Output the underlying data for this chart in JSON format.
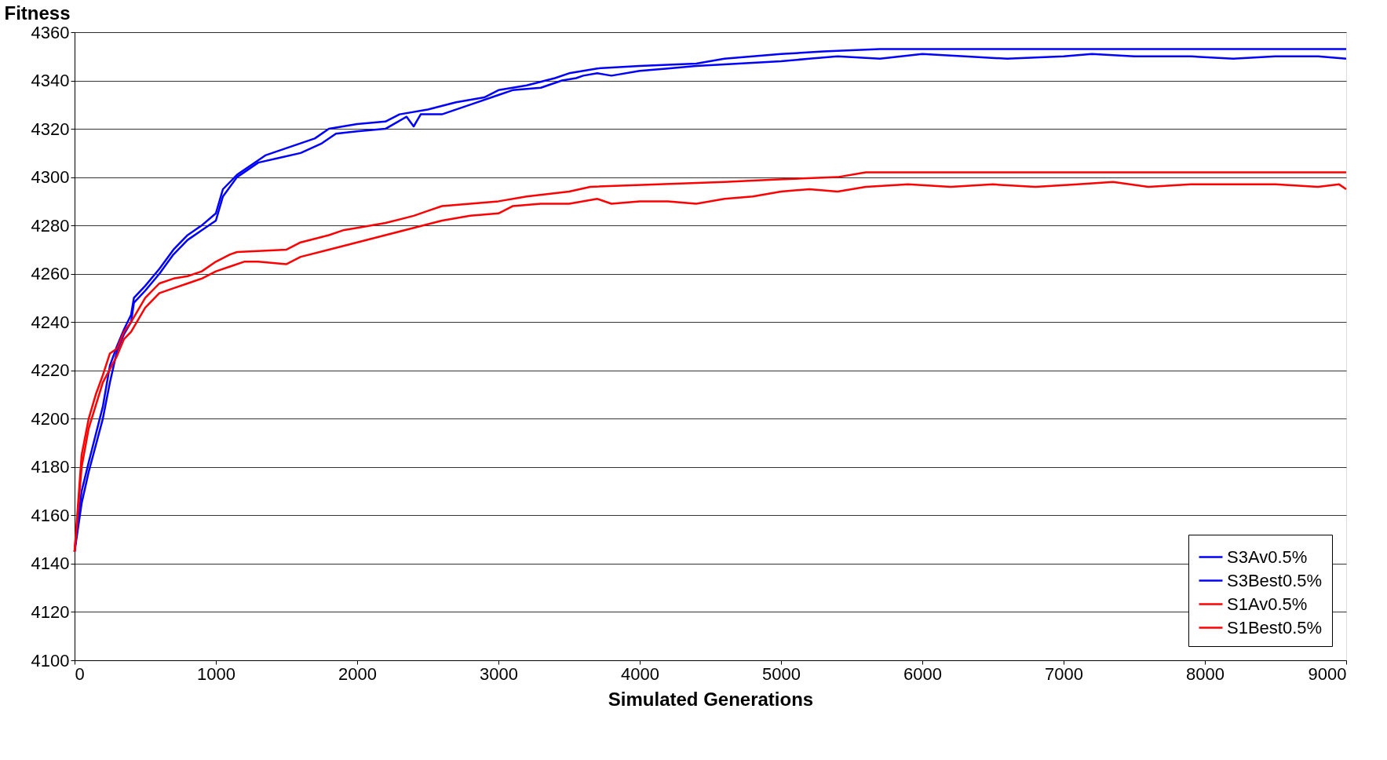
{
  "chart_data": {
    "type": "line",
    "xlabel": "Simulated Generations",
    "ylabel": "Fitness",
    "xlim": [
      0,
      9000
    ],
    "xticks": [
      0,
      1000,
      2000,
      3000,
      4000,
      5000,
      6000,
      7000,
      8000,
      9000
    ],
    "ylim": [
      4100,
      4360
    ],
    "yticks": [
      4100,
      4120,
      4140,
      4160,
      4180,
      4200,
      4220,
      4240,
      4260,
      4280,
      4300,
      4320,
      4340,
      4360
    ],
    "grid": "y",
    "legend": "bottom right",
    "marker": "none",
    "line_style": "solid",
    "series": [
      {
        "name": "S3Av0.5%",
        "color": "#0000ff",
        "x": [
          0,
          50,
          100,
          200,
          250,
          300,
          350,
          400,
          420,
          500,
          600,
          700,
          800,
          900,
          1000,
          1050,
          1150,
          1300,
          1450,
          1600,
          1750,
          1850,
          2000,
          2200,
          2350,
          2400,
          2450,
          2600,
          2800,
          3000,
          3100,
          3300,
          3450,
          3550,
          3600,
          3700,
          3800,
          4000,
          4200,
          4400,
          4700,
          5000,
          5200,
          5400,
          5700,
          6000,
          6300,
          6600,
          7000,
          7200,
          7500,
          7900,
          8200,
          8500,
          8800,
          9000
        ],
        "values": [
          4145,
          4165,
          4178,
          4200,
          4215,
          4228,
          4235,
          4240,
          4248,
          4253,
          4260,
          4268,
          4274,
          4278,
          4282,
          4292,
          4300,
          4306,
          4308,
          4310,
          4314,
          4318,
          4319,
          4320,
          4325,
          4321,
          4326,
          4326,
          4330,
          4334,
          4336,
          4337,
          4340,
          4341,
          4342,
          4343,
          4342,
          4344,
          4345,
          4346,
          4347,
          4348,
          4349,
          4350,
          4349,
          4351,
          4350,
          4349,
          4350,
          4351,
          4350,
          4350,
          4349,
          4350,
          4350,
          4349
        ]
      },
      {
        "name": "S3Best0.5%",
        "color": "#0000ff",
        "x": [
          0,
          50,
          100,
          200,
          250,
          300,
          350,
          400,
          420,
          500,
          600,
          700,
          800,
          900,
          1000,
          1050,
          1150,
          1250,
          1350,
          1500,
          1700,
          1800,
          2000,
          2200,
          2300,
          2500,
          2700,
          2900,
          3000,
          3200,
          3400,
          3500,
          3700,
          4000,
          4400,
          4600,
          4800,
          5000,
          5300,
          5700,
          9000
        ],
        "values": [
          4145,
          4170,
          4182,
          4205,
          4222,
          4230,
          4237,
          4243,
          4250,
          4255,
          4262,
          4270,
          4276,
          4280,
          4285,
          4295,
          4301,
          4305,
          4309,
          4312,
          4316,
          4320,
          4322,
          4323,
          4326,
          4328,
          4331,
          4333,
          4336,
          4338,
          4341,
          4343,
          4345,
          4346,
          4347,
          4349,
          4350,
          4351,
          4352,
          4353,
          4353
        ]
      },
      {
        "name": "S1Av0.5%",
        "color": "#ff0000",
        "x": [
          0,
          50,
          100,
          200,
          300,
          350,
          400,
          500,
          600,
          700,
          800,
          900,
          1000,
          1100,
          1200,
          1300,
          1500,
          1600,
          1800,
          2000,
          2200,
          2400,
          2600,
          2800,
          3000,
          3100,
          3300,
          3500,
          3700,
          3800,
          4000,
          4200,
          4400,
          4600,
          4800,
          5000,
          5200,
          5400,
          5600,
          5900,
          6200,
          6500,
          6800,
          7100,
          7350,
          7600,
          7900,
          8200,
          8500,
          8800,
          8950,
          9000
        ],
        "values": [
          4145,
          4180,
          4196,
          4215,
          4226,
          4233,
          4236,
          4246,
          4252,
          4254,
          4256,
          4258,
          4261,
          4263,
          4265,
          4265,
          4264,
          4267,
          4270,
          4273,
          4276,
          4279,
          4282,
          4284,
          4285,
          4288,
          4289,
          4289,
          4291,
          4289,
          4290,
          4290,
          4289,
          4291,
          4292,
          4294,
          4295,
          4294,
          4296,
          4297,
          4296,
          4297,
          4296,
          4297,
          4298,
          4296,
          4297,
          4297,
          4297,
          4296,
          4297,
          4295
        ]
      },
      {
        "name": "S1Best0.5%",
        "color": "#ff0000",
        "x": [
          0,
          50,
          100,
          150,
          200,
          250,
          300,
          350,
          400,
          500,
          600,
          700,
          800,
          900,
          1000,
          1100,
          1150,
          1500,
          1600,
          1800,
          1900,
          2000,
          2200,
          2400,
          2500,
          2600,
          2800,
          3000,
          3200,
          3500,
          3650,
          4600,
          4950,
          5400,
          5600,
          9000
        ],
        "values": [
          4145,
          4185,
          4200,
          4210,
          4218,
          4227,
          4229,
          4236,
          4240,
          4250,
          4256,
          4258,
          4259,
          4261,
          4265,
          4268,
          4269,
          4270,
          4273,
          4276,
          4278,
          4279,
          4281,
          4284,
          4286,
          4288,
          4289,
          4290,
          4292,
          4294,
          4296,
          4298,
          4299,
          4300,
          4302,
          4302
        ]
      }
    ]
  }
}
